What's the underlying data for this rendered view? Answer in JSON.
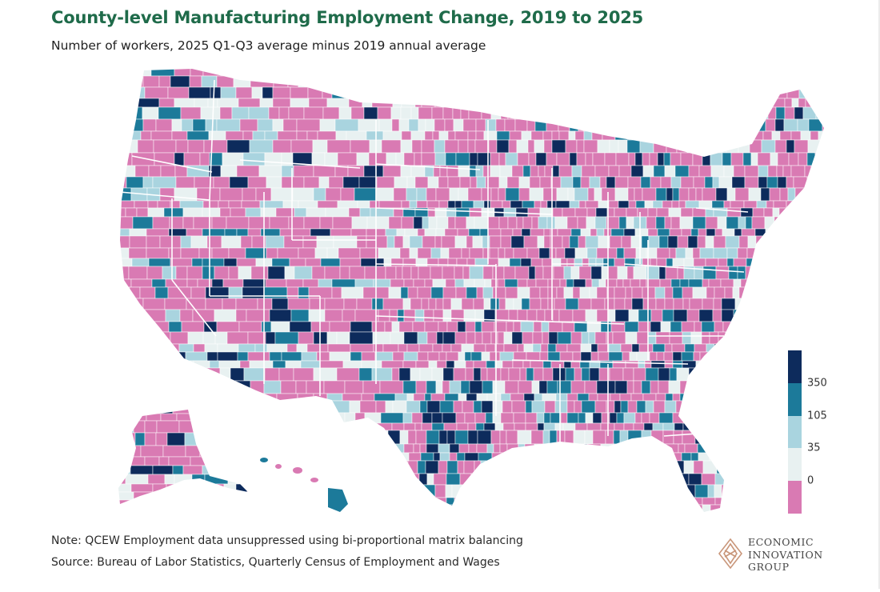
{
  "header": {
    "title": "County-level Manufacturing Employment Change, 2019 to 2025",
    "subtitle": "Number of workers, 2025 Q1-Q3 average minus 2019 annual average"
  },
  "legend": {
    "labels": [
      "350",
      "105",
      "35",
      "0"
    ],
    "bins": [
      {
        "color": "#0d2b5c"
      },
      {
        "color": "#1c7a9a"
      },
      {
        "color": "#a9d4df"
      },
      {
        "color": "#e8f1f1"
      },
      {
        "color": "#d97ab3"
      }
    ]
  },
  "colors": {
    "title": "#1f6b4a",
    "state_border": "#ffffff"
  },
  "footer": {
    "note": "Note: QCEW Employment data unsuppressed using bi-proportional matrix balancing",
    "source": "Source: Bureau of Labor Statistics, Quarterly Census of Employment and Wages"
  },
  "logo": {
    "lines": [
      "ECONOMIC",
      "INNOVATION",
      "GROUP"
    ],
    "icon": "diamond-logo-icon",
    "color": "#c9967a"
  }
}
